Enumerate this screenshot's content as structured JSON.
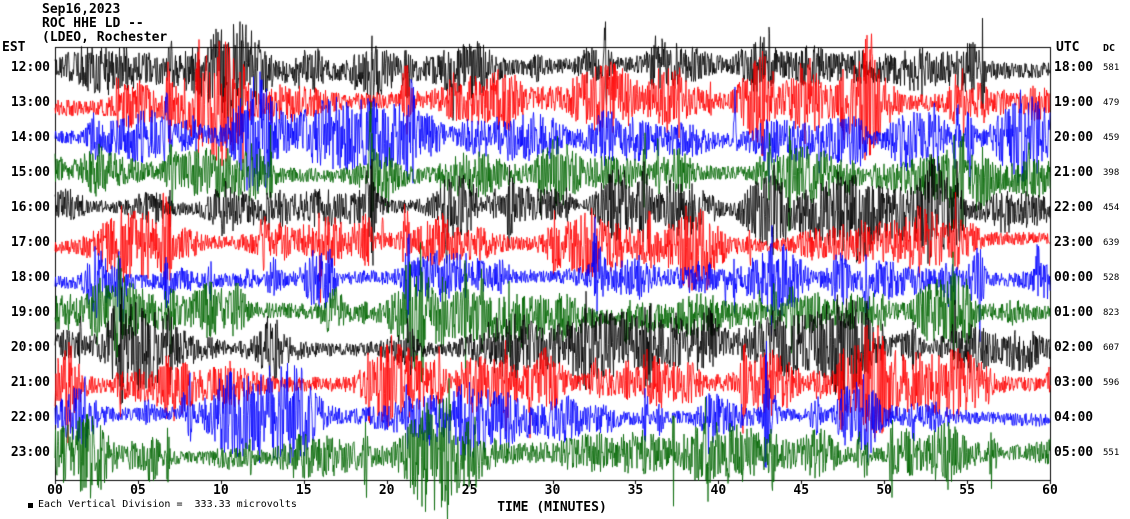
{
  "header": {
    "date": "Sep16,2023",
    "station": "ROC HHE LD --",
    "location": "(LDEO, Rochester"
  },
  "axis_headers": {
    "left": "EST",
    "right": "UTC",
    "dc": "DC"
  },
  "footer": {
    "scale_note": "Each Vertical Division =  333.33 microvolts"
  },
  "chart_data": {
    "type": "line",
    "subtype": "helicorder-seismogram",
    "title": "ROC HHE LD -- (LDEO, Rochester  Sep16,2023",
    "xlabel": "TIME (MINUTES)",
    "x_range": [
      0,
      60
    ],
    "x_tick_labels": [
      "00",
      "05",
      "10",
      "15",
      "20",
      "25",
      "30",
      "35",
      "40",
      "45",
      "50",
      "55",
      "60"
    ],
    "grid": false,
    "vertical_division_microvolts": 333.33,
    "trace_colors_cycle": [
      "#000000",
      "#ff0000",
      "#0000ff",
      "#006600"
    ],
    "rows": [
      {
        "est": "12:00",
        "utc": "18:00",
        "dc": "581",
        "color": "#000000"
      },
      {
        "est": "13:00",
        "utc": "19:00",
        "dc": "479",
        "color": "#ff0000"
      },
      {
        "est": "14:00",
        "utc": "20:00",
        "dc": "459",
        "color": "#0000ff"
      },
      {
        "est": "15:00",
        "utc": "21:00",
        "dc": "398",
        "color": "#006600"
      },
      {
        "est": "16:00",
        "utc": "22:00",
        "dc": "454",
        "color": "#000000"
      },
      {
        "est": "17:00",
        "utc": "23:00",
        "dc": "639",
        "color": "#ff0000"
      },
      {
        "est": "18:00",
        "utc": "00:00",
        "dc": "528",
        "color": "#0000ff"
      },
      {
        "est": "19:00",
        "utc": "01:00",
        "dc": "823",
        "color": "#006600"
      },
      {
        "est": "20:00",
        "utc": "02:00",
        "dc": "607",
        "color": "#000000"
      },
      {
        "est": "21:00",
        "utc": "03:00",
        "dc": "596",
        "color": "#ff0000"
      },
      {
        "est": "22:00",
        "utc": "04:00",
        "dc": "",
        "color": "#0000ff"
      },
      {
        "est": "23:00",
        "utc": "05:00",
        "dc": "551",
        "color": "#006600"
      }
    ]
  }
}
